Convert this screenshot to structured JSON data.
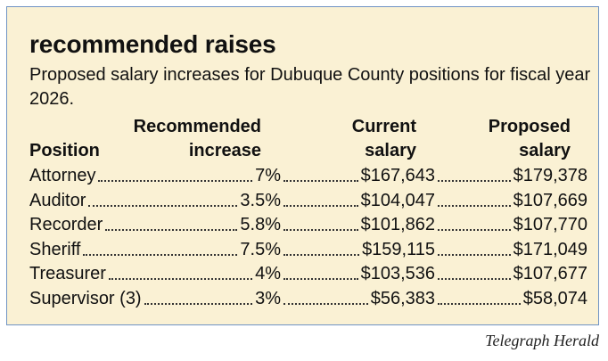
{
  "headline": "recommended raises",
  "subtitle": "Proposed salary increases for Dubuque County positions for fiscal year 2026.",
  "columns": {
    "position": "Position",
    "increase": [
      "Recommended",
      "increase"
    ],
    "current": [
      "Current",
      "salary"
    ],
    "proposed": [
      "Proposed",
      "salary"
    ]
  },
  "rows": [
    {
      "position": "Attorney",
      "increase": "7%",
      "current": "$167,643",
      "proposed": "$179,378"
    },
    {
      "position": "Auditor",
      "increase": "3.5%",
      "current": "$104,047",
      "proposed": "$107,669"
    },
    {
      "position": "Recorder",
      "increase": "5.8%",
      "current": "$101,862",
      "proposed": "$107,770"
    },
    {
      "position": "Sheriff",
      "increase": "7.5%",
      "current": "$159,115",
      "proposed": "$171,049"
    },
    {
      "position": "Treasurer",
      "increase": "4%",
      "current": "$103,536",
      "proposed": "$107,677"
    },
    {
      "position": "Supervisor (3)",
      "increase": "3%",
      "current": "$56,383",
      "proposed": "$58,074"
    }
  ],
  "credit": "Telegraph Herald",
  "colors": {
    "panel_background": "#faf1d4",
    "panel_border": "#6f93c4",
    "text": "#111111"
  }
}
